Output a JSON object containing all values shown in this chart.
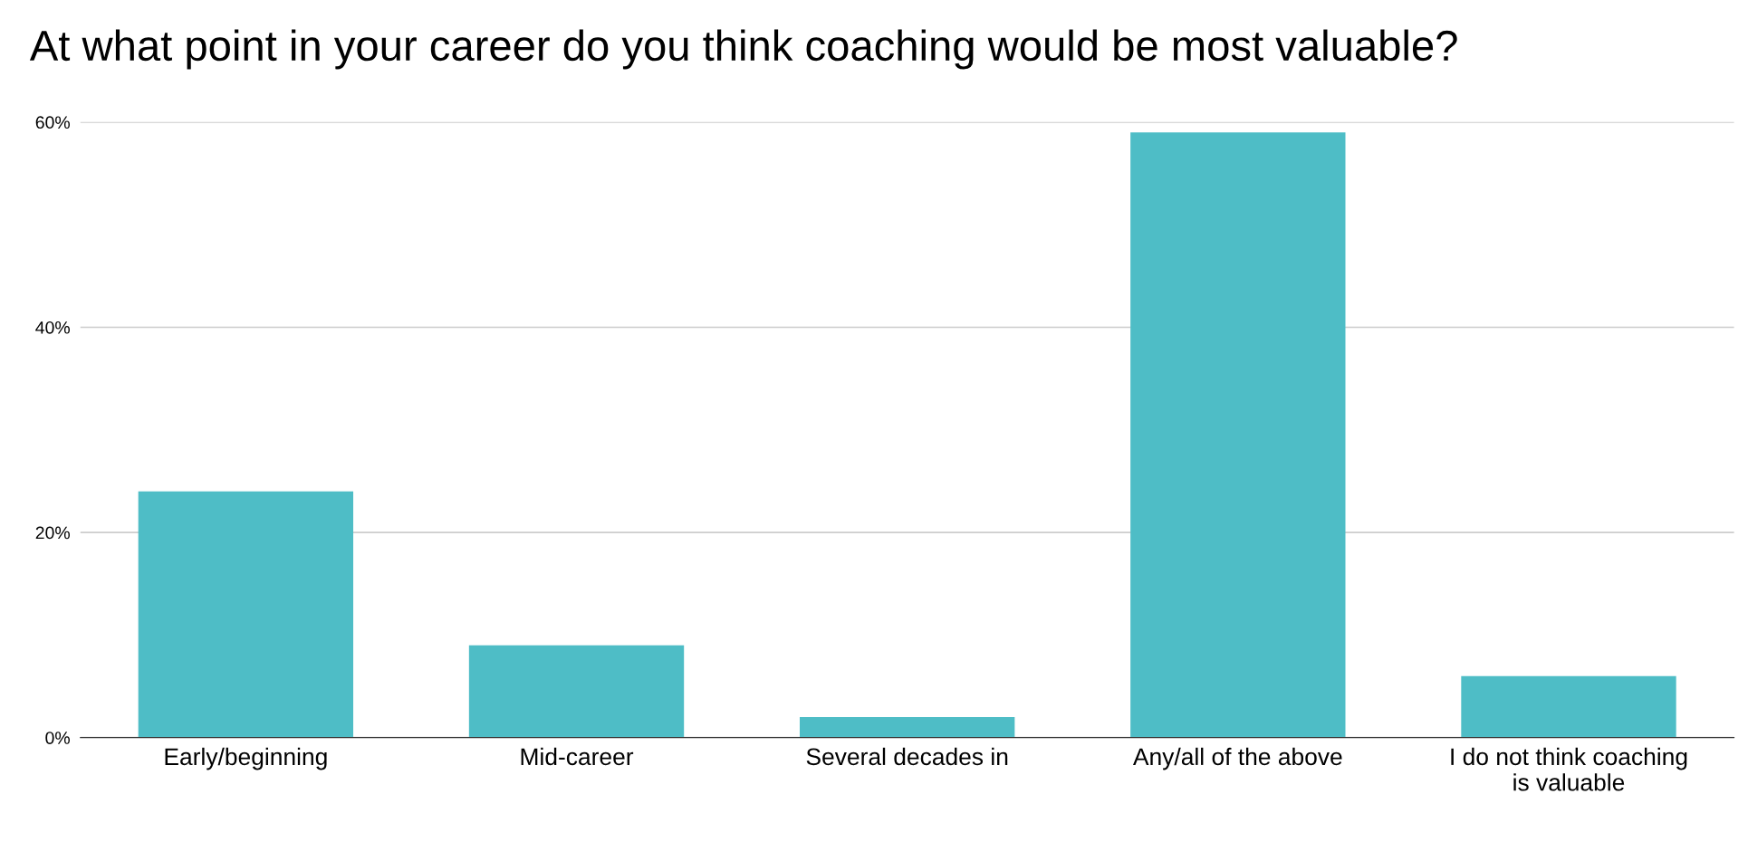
{
  "chart_data": {
    "type": "bar",
    "title": "At what point in your career do you think coaching would be most valuable?",
    "categories": [
      "Early/beginning",
      "Mid-career",
      "Several decades in",
      "Any/all of the above",
      "I do not think coaching is valuable"
    ],
    "values": [
      24,
      9,
      2,
      59,
      6
    ],
    "color": "#4ebdc6",
    "ylim": [
      0,
      60
    ],
    "yticks": [
      {
        "value": 0,
        "label": "0%"
      },
      {
        "value": 20,
        "label": "20%"
      },
      {
        "value": 40,
        "label": "40%"
      },
      {
        "value": 60,
        "label": "60%"
      }
    ],
    "grid": "y",
    "legend": false
  }
}
